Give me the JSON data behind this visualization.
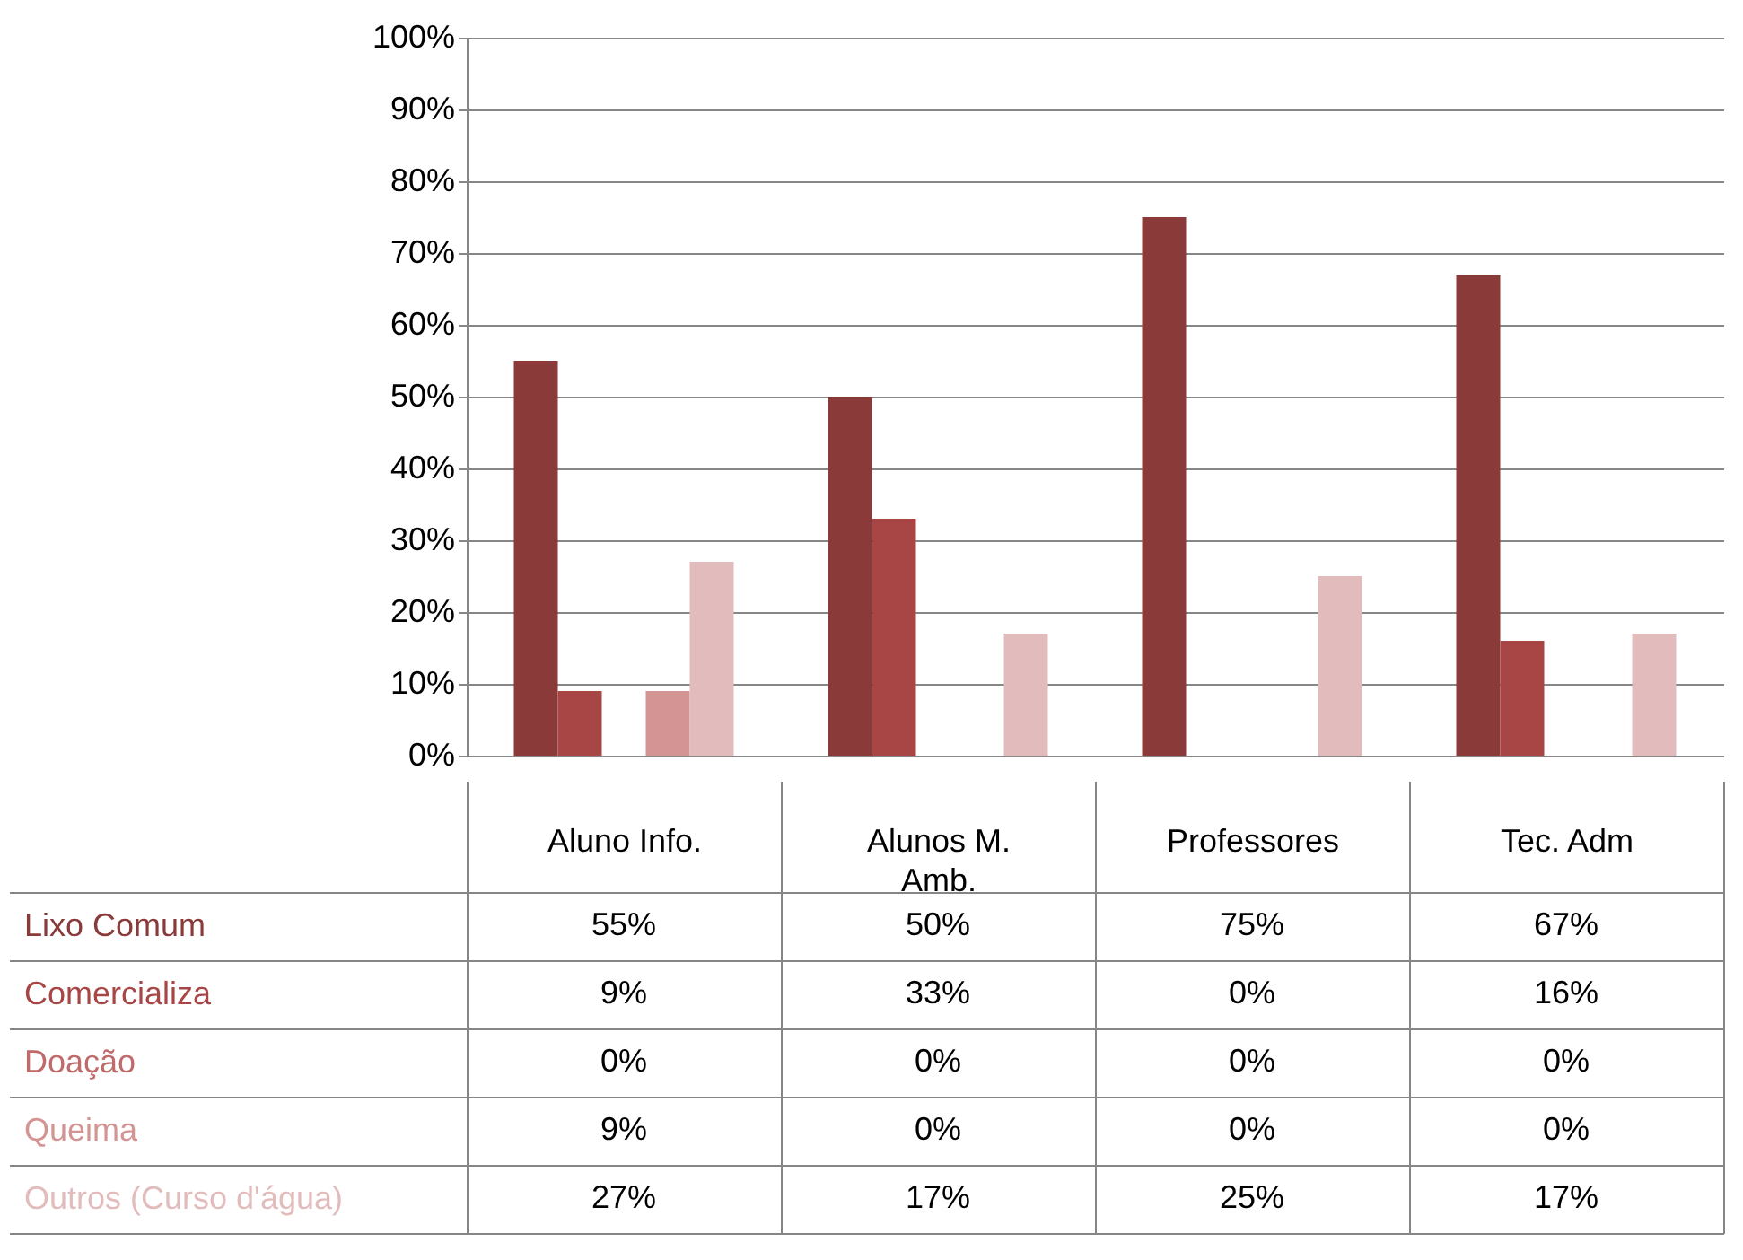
{
  "chart_data": {
    "type": "bar",
    "categories": [
      "Aluno Info.",
      "Alunos M. Amb.",
      "Professores",
      "Tec. Adm"
    ],
    "series": [
      {
        "name": "Lixo Comum",
        "color": "#8b3a3a",
        "values": [
          55,
          50,
          75,
          67
        ],
        "value_labels": [
          "55%",
          "50%",
          "75%",
          "67%"
        ]
      },
      {
        "name": "Comercializa",
        "color": "#a84646",
        "values": [
          9,
          33,
          0,
          16
        ],
        "value_labels": [
          "9%",
          "33%",
          "0%",
          "16%"
        ]
      },
      {
        "name": "Doação",
        "color": "#c06a6a",
        "values": [
          0,
          0,
          0,
          0
        ],
        "value_labels": [
          "0%",
          "0%",
          "0%",
          "0%"
        ]
      },
      {
        "name": "Queima",
        "color": "#d49494",
        "values": [
          9,
          0,
          0,
          0
        ],
        "value_labels": [
          "9%",
          "0%",
          "0%",
          "0%"
        ]
      },
      {
        "name": "Outros (Curso d'água)",
        "color": "#e2bcbc",
        "values": [
          27,
          17,
          25,
          17
        ],
        "value_labels": [
          "27%",
          "17%",
          "25%",
          "17%"
        ]
      }
    ],
    "ylim": [
      0,
      100
    ],
    "yticks": [
      {
        "value": 0,
        "label": "0%"
      },
      {
        "value": 10,
        "label": "10%"
      },
      {
        "value": 20,
        "label": "20%"
      },
      {
        "value": 30,
        "label": "30%"
      },
      {
        "value": 40,
        "label": "40%"
      },
      {
        "value": 50,
        "label": "50%"
      },
      {
        "value": 60,
        "label": "60%"
      },
      {
        "value": 70,
        "label": "70%"
      },
      {
        "value": 80,
        "label": "80%"
      },
      {
        "value": 90,
        "label": "90%"
      },
      {
        "value": 100,
        "label": "100%"
      }
    ],
    "grid": "y"
  }
}
